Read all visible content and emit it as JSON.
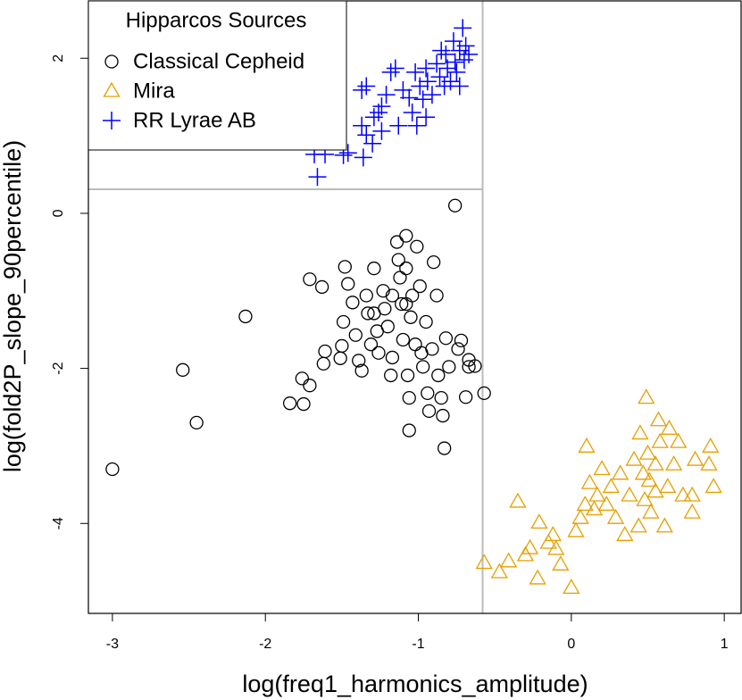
{
  "chart_data": {
    "type": "scatter",
    "x_label": "log(freq1_harmonics_amplitude)",
    "y_label": "log(fold2P_slope_90percentile)",
    "legend_title": "Hipparcos Sources",
    "legend_position": "topleft",
    "xlim": [
      -3.157,
      1.11
    ],
    "ylim": [
      -5.16,
      2.74
    ],
    "xticks": [
      -3,
      -2,
      -1,
      0,
      1
    ],
    "yticks": [
      -4,
      -2,
      0,
      2
    ],
    "reference_lines": {
      "x": -0.58,
      "y": 0.31,
      "color": "#bbbbbb"
    },
    "series": [
      {
        "name": "Classical Cepheid",
        "color": "#000000",
        "marker": "circle",
        "x": [
          -3.0,
          -2.54,
          -2.45,
          -2.13,
          -1.84,
          -1.75,
          -1.76,
          -1.71,
          -1.71,
          -1.63,
          -1.61,
          -1.62,
          -1.51,
          -1.5,
          -1.48,
          -1.46,
          -1.49,
          -1.43,
          -1.41,
          -1.39,
          -1.37,
          -1.34,
          -1.33,
          -1.31,
          -1.29,
          -1.27,
          -1.26,
          -1.23,
          -1.22,
          -1.2,
          -1.18,
          -1.17,
          -1.14,
          -1.13,
          -1.12,
          -1.11,
          -1.1,
          -1.08,
          -1.08,
          -1.07,
          -1.06,
          -1.06,
          -1.05,
          -1.04,
          -1.02,
          -1.01,
          -0.99,
          -0.98,
          -0.97,
          -0.95,
          -0.94,
          -0.93,
          -0.91,
          -0.9,
          -0.88,
          -0.87,
          -0.85,
          -0.84,
          -0.83,
          -0.82,
          -0.8,
          -0.76,
          -0.74,
          -0.72,
          -0.69,
          -0.67,
          -0.67,
          -0.63,
          -0.57,
          -1.29,
          -1.17,
          -1.08
        ],
        "y": [
          -3.3,
          -2.02,
          -2.7,
          -1.33,
          -2.45,
          -2.46,
          -2.13,
          -2.22,
          -0.85,
          -0.95,
          -1.78,
          -1.94,
          -1.87,
          -1.71,
          -0.69,
          -0.91,
          -1.4,
          -1.15,
          -1.57,
          -1.9,
          -2.03,
          -1.06,
          -1.29,
          -1.69,
          -0.71,
          -1.52,
          -1.8,
          -1.0,
          -1.23,
          -1.46,
          -2.09,
          -1.86,
          -0.37,
          -0.6,
          -0.83,
          -1.17,
          -1.63,
          -0.29,
          -0.71,
          -2.09,
          -2.38,
          -2.8,
          -1.34,
          -1.06,
          -1.69,
          -0.43,
          -0.94,
          -1.8,
          -1.98,
          -1.4,
          -2.32,
          -2.55,
          -1.75,
          -0.63,
          -1.06,
          -2.09,
          -2.38,
          -2.61,
          -3.03,
          -1.61,
          -1.98,
          0.1,
          -1.75,
          -1.64,
          -2.37,
          -1.89,
          -1.98,
          -1.97,
          -2.32,
          -1.29,
          -1.06,
          -1.17
        ]
      },
      {
        "name": "Mira",
        "color": "#e69f00",
        "marker": "triangle",
        "x": [
          -0.57,
          -0.47,
          -0.41,
          -0.35,
          -0.3,
          -0.27,
          -0.22,
          -0.21,
          -0.15,
          -0.12,
          -0.1,
          -0.07,
          0.0,
          0.03,
          0.06,
          0.09,
          0.1,
          0.12,
          0.15,
          0.17,
          0.2,
          0.23,
          0.26,
          0.29,
          0.32,
          0.35,
          0.38,
          0.41,
          0.44,
          0.45,
          0.47,
          0.48,
          0.49,
          0.5,
          0.51,
          0.52,
          0.55,
          0.57,
          0.58,
          0.61,
          0.63,
          0.64,
          0.67,
          0.7,
          0.73,
          0.79,
          0.81,
          0.9,
          0.91,
          0.93,
          0.79,
          0.55
        ],
        "y": [
          -4.51,
          -4.63,
          -4.49,
          -3.72,
          -4.41,
          -4.32,
          -4.71,
          -3.99,
          -4.25,
          -4.15,
          -4.33,
          -4.53,
          -4.83,
          -4.1,
          -3.93,
          -3.76,
          -3.01,
          -3.48,
          -3.82,
          -3.64,
          -3.3,
          -3.76,
          -3.53,
          -3.93,
          -3.36,
          -4.15,
          -3.64,
          -3.18,
          -4.04,
          -2.84,
          -3.36,
          -3.7,
          -2.38,
          -3.1,
          -3.45,
          -3.86,
          -3.24,
          -2.67,
          -2.95,
          -4.04,
          -3.53,
          -2.78,
          -3.24,
          -2.95,
          -3.64,
          -3.86,
          -3.18,
          -3.24,
          -3.01,
          -3.53,
          -3.64,
          -3.59
        ]
      },
      {
        "name": "RR Lyrae AB",
        "color": "#0000ff",
        "marker": "plus",
        "x": [
          -1.66,
          -1.68,
          -1.61,
          -1.49,
          -1.46,
          -1.36,
          -1.37,
          -1.34,
          -1.3,
          -1.37,
          -1.34,
          -1.29,
          -1.26,
          -1.24,
          -1.21,
          -1.18,
          -1.15,
          -1.13,
          -1.1,
          -1.06,
          -1.04,
          -1.02,
          -1.01,
          -0.99,
          -0.97,
          -0.95,
          -0.94,
          -0.91,
          -0.88,
          -0.86,
          -0.85,
          -0.83,
          -0.82,
          -0.81,
          -0.79,
          -0.77,
          -0.76,
          -0.75,
          -0.73,
          -0.71,
          -0.7,
          -0.69,
          -0.67,
          -0.73,
          -0.95,
          -1.24
        ],
        "y": [
          0.47,
          0.76,
          0.76,
          0.75,
          0.78,
          0.72,
          1.13,
          1.01,
          0.9,
          1.59,
          1.64,
          1.24,
          1.3,
          1.38,
          1.53,
          1.82,
          1.87,
          1.13,
          1.59,
          1.49,
          1.3,
          1.82,
          1.13,
          1.64,
          1.47,
          1.87,
          1.7,
          1.53,
          1.93,
          1.76,
          2.1,
          1.64,
          2.05,
          1.87,
          1.7,
          2.22,
          1.95,
          1.82,
          2.1,
          2.39,
          1.98,
          2.16,
          2.05,
          1.64,
          1.24,
          1.06
        ]
      }
    ]
  }
}
